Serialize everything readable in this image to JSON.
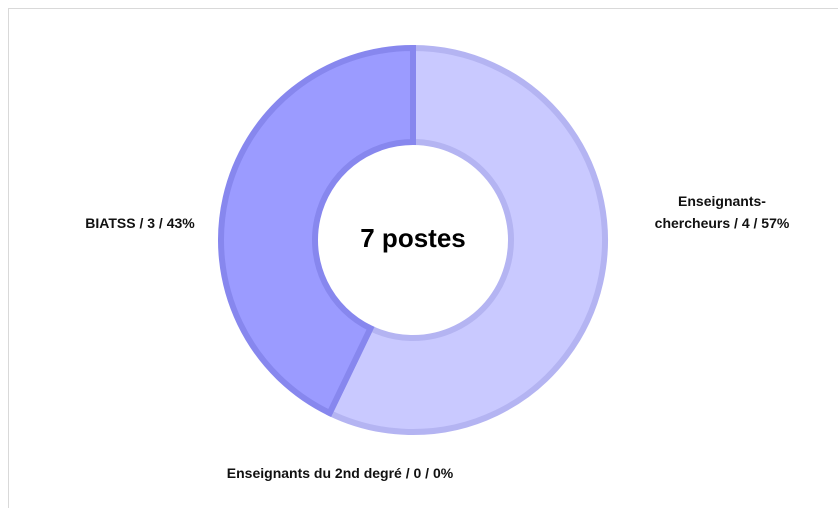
{
  "chart_data": {
    "type": "donut",
    "center_label": "7 postes",
    "labels": [
      "Enseignants-chercheurs / 4 / 57%",
      "Enseignants du 2nd degré / 0 / 0%",
      "BIATSS / 3 / 43%"
    ],
    "values": [
      4,
      0,
      3
    ],
    "colors": [
      "#c9c9ff",
      "#b3b3ff",
      "#9b9bff"
    ],
    "edge_colors": [
      "#b4b4f2",
      "#9a9aee",
      "#8787ee"
    ]
  }
}
